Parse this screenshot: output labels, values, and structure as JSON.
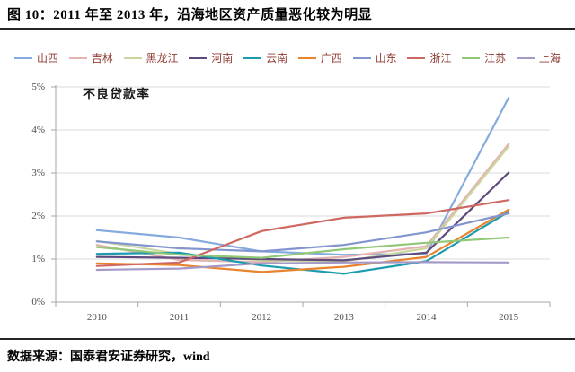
{
  "page": {
    "title": "图 10：2011 年至 2013 年，沿海地区资产质量恶化较为明显",
    "source": "数据来源：国泰君安证券研究，wind"
  },
  "chart_data": {
    "type": "line",
    "title": "图 10：2011 年至 2013 年，沿海地区资产质量恶化较为明显",
    "inner_label": "不良贷款率",
    "categories": [
      "2010",
      "2011",
      "2012",
      "2013",
      "2014",
      "2015"
    ],
    "ylabel": "不良贷款率",
    "ylim": [
      0,
      5
    ],
    "yticks": [
      "0%",
      "1%",
      "2%",
      "3%",
      "4%",
      "5%"
    ],
    "grid": "horizontal",
    "legend_position": "top",
    "unit": "percent",
    "series": [
      {
        "key": "shanxi",
        "name": "山西",
        "color": "#85ABDE",
        "values": [
          1.67,
          1.5,
          1.18,
          1.1,
          1.12,
          4.75
        ]
      },
      {
        "key": "jilin",
        "name": "吉林",
        "color": "#E4B3B0",
        "values": [
          1.33,
          0.98,
          0.93,
          1.05,
          1.3,
          3.68
        ]
      },
      {
        "key": "heilongjiang",
        "name": "黑龙江",
        "color": "#C9D79F",
        "values": [
          1.42,
          1.12,
          0.97,
          0.95,
          1.25,
          3.62
        ]
      },
      {
        "key": "henan",
        "name": "河南",
        "color": "#5F4A7E",
        "values": [
          1.05,
          1.03,
          1.0,
          0.97,
          1.15,
          3.01
        ]
      },
      {
        "key": "yunnan",
        "name": "云南",
        "color": "#1C9AAE",
        "values": [
          1.12,
          1.15,
          0.85,
          0.66,
          0.95,
          2.1
        ]
      },
      {
        "key": "guangxi",
        "name": "广西",
        "color": "#E8842E",
        "values": [
          0.9,
          0.86,
          0.7,
          0.82,
          1.05,
          2.15
        ]
      },
      {
        "key": "shandong",
        "name": "山东",
        "color": "#8295CE",
        "values": [
          1.41,
          1.25,
          1.18,
          1.33,
          1.62,
          2.06
        ]
      },
      {
        "key": "zhejiang",
        "name": "浙江",
        "color": "#CF6860",
        "values": [
          0.84,
          0.92,
          1.65,
          1.96,
          2.06,
          2.37
        ]
      },
      {
        "key": "jiangsu",
        "name": "江苏",
        "color": "#90C878",
        "values": [
          1.28,
          1.1,
          1.03,
          1.23,
          1.38,
          1.5
        ]
      },
      {
        "key": "shanghai",
        "name": "上海",
        "color": "#A49AC8",
        "values": [
          0.75,
          0.78,
          0.9,
          0.92,
          0.93,
          0.92
        ]
      }
    ]
  },
  "colors": {
    "grid": "#D9D9D9",
    "axis": "#A6A6A6",
    "tick_text": "#4D4D4D",
    "legend_text": "#8F3B33",
    "rule": "#262626"
  }
}
